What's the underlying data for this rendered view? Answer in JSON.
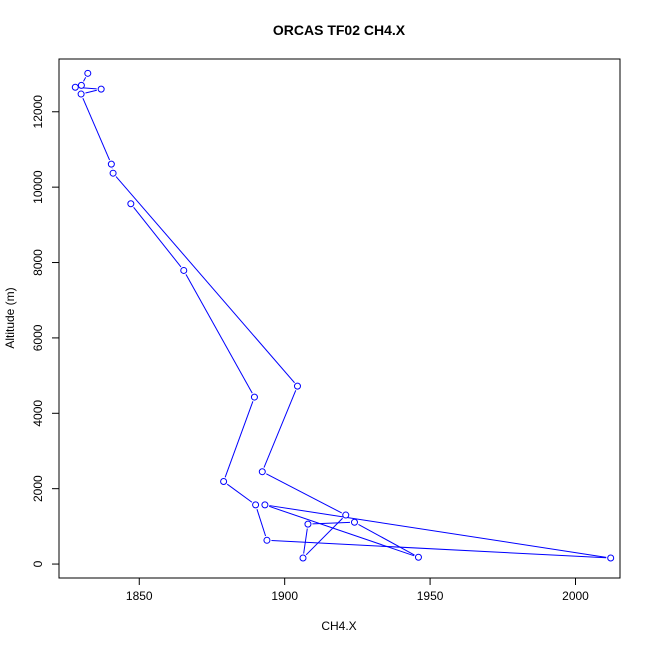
{
  "chart_data": {
    "type": "line",
    "title": "ORCAS TF02 CH4.X",
    "xlabel": "CH4.X",
    "ylabel": "Altitude (m)",
    "xlim": [
      1822.4,
      2015.3
    ],
    "ylim": [
      -370,
      13400
    ],
    "xticks": [
      1850,
      1900,
      1950,
      2000
    ],
    "yticks": [
      0,
      2000,
      4000,
      6000,
      8000,
      10000,
      12000
    ],
    "grid": false,
    "series": [
      {
        "color": "#0000ff",
        "marker": "open-circle",
        "points": [
          {
            "x": 1832.3,
            "y": 13020
          },
          {
            "x": 1830.1,
            "y": 12700
          },
          {
            "x": 1828.0,
            "y": 12650
          },
          {
            "x": 1836.9,
            "y": 12600
          },
          {
            "x": 1830.0,
            "y": 12470
          },
          {
            "x": 1840.4,
            "y": 10610
          },
          {
            "x": 1841.0,
            "y": 10370
          },
          {
            "x": 1904.4,
            "y": 4720
          },
          {
            "x": 1892.3,
            "y": 2450
          },
          {
            "x": 1921.0,
            "y": 1300
          },
          {
            "x": 1906.3,
            "y": 160
          },
          {
            "x": 1908.0,
            "y": 1060
          },
          {
            "x": 1924.0,
            "y": 1110
          },
          {
            "x": 1946.0,
            "y": 180
          },
          {
            "x": 1893.2,
            "y": 1570
          },
          {
            "x": 2012.1,
            "y": 160
          },
          {
            "x": 1893.9,
            "y": 630
          },
          {
            "x": 1890.0,
            "y": 1570
          },
          {
            "x": 1879.0,
            "y": 2190
          },
          {
            "x": 1889.6,
            "y": 4430
          },
          {
            "x": 1865.3,
            "y": 7790
          },
          {
            "x": 1847.1,
            "y": 9560
          }
        ]
      }
    ]
  }
}
